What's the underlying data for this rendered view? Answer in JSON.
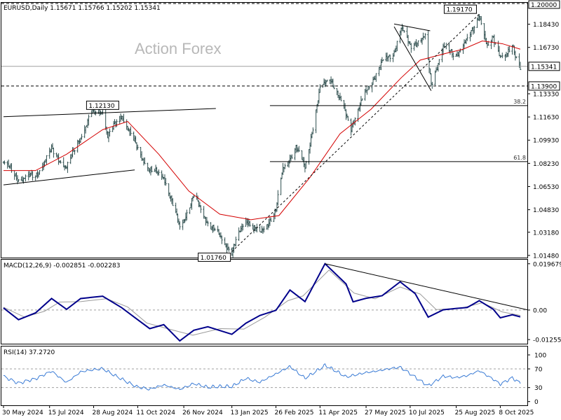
{
  "window": {
    "title": "EURUSD,Daily  1.15671 1.15766 1.15202 1.15341"
  },
  "watermark": "Action Forex",
  "colors": {
    "candle": "#2f4f4f",
    "ma": "#d40000",
    "macd": "#00008b",
    "signal": "#9a9a9a",
    "rsi": "#3a7bd5",
    "trend": "#000000",
    "priceLine": "#a0a0a0"
  },
  "chart_data": [
    {
      "type": "candlestick",
      "title": "EURUSD,Daily",
      "ohlc": {
        "open": 1.15671,
        "high": 1.15766,
        "low": 1.15202,
        "close": 1.15341
      },
      "x_tick_labels": [
        "30 May 2024",
        "15 Jul 2024",
        "28 Aug 2024",
        "11 Oct 2024",
        "26 Nov 2024",
        "13 Jan 2025",
        "26 Feb 2025",
        "11 Apr 2025",
        "27 May 2025",
        "10 Jul 2025",
        "25 Aug 2025",
        "8 Oct 2025"
      ],
      "y_tick_labels": [
        "1.20000",
        "1.18430",
        "1.16730",
        "1.15341",
        "1.13900",
        "1.13330",
        "1.11630",
        "1.09930",
        "1.08230",
        "1.06530",
        "1.04830",
        "1.03180",
        "1.01480"
      ],
      "ylim": [
        1.0132,
        1.2
      ],
      "current_price": "1.15341",
      "annotations": [
        {
          "label": "1.12130",
          "x": "2024-09-06",
          "price": 1.1213
        },
        {
          "label": "1.01760",
          "x": "2025-01-13",
          "price": 1.0176
        },
        {
          "label": "1.19170",
          "x": "2025-09-17",
          "price": 1.1917
        },
        {
          "label": "1.13900",
          "price": 1.139
        }
      ],
      "fib_levels": [
        {
          "label": "38.2",
          "price": 1.1246
        },
        {
          "label": "61.8",
          "price": 1.0836
        }
      ],
      "series": [
        {
          "name": "price",
          "points": [
            [
              "2024-05-30",
              1.083
            ],
            [
              "2024-06-14",
              1.071
            ],
            [
              "2024-07-01",
              1.073
            ],
            [
              "2024-07-17",
              1.092
            ],
            [
              "2024-08-01",
              1.079
            ],
            [
              "2024-08-15",
              1.102
            ],
            [
              "2024-08-26",
              1.119
            ],
            [
              "2024-09-06",
              1.1213
            ],
            [
              "2024-09-11",
              1.102
            ],
            [
              "2024-09-25",
              1.118
            ],
            [
              "2024-10-10",
              1.094
            ],
            [
              "2024-10-23",
              1.077
            ],
            [
              "2024-11-06",
              1.073
            ],
            [
              "2024-11-22",
              1.035
            ],
            [
              "2024-12-06",
              1.058
            ],
            [
              "2024-12-20",
              1.039
            ],
            [
              "2025-01-13",
              1.0176
            ],
            [
              "2025-01-27",
              1.042
            ],
            [
              "2025-02-10",
              1.03
            ],
            [
              "2025-02-26",
              1.048
            ],
            [
              "2025-03-05",
              1.078
            ],
            [
              "2025-03-18",
              1.094
            ],
            [
              "2025-03-27",
              1.079
            ],
            [
              "2025-04-11",
              1.136
            ],
            [
              "2025-04-21",
              1.146
            ],
            [
              "2025-05-12",
              1.109
            ],
            [
              "2025-05-27",
              1.135
            ],
            [
              "2025-06-12",
              1.156
            ],
            [
              "2025-06-24",
              1.164
            ],
            [
              "2025-07-01",
              1.181
            ],
            [
              "2025-07-10",
              1.169
            ],
            [
              "2025-07-25",
              1.174
            ],
            [
              "2025-07-31",
              1.141
            ],
            [
              "2025-08-12",
              1.167
            ],
            [
              "2025-08-25",
              1.162
            ],
            [
              "2025-09-05",
              1.172
            ],
            [
              "2025-09-17",
              1.1917
            ],
            [
              "2025-09-25",
              1.166
            ],
            [
              "2025-10-01",
              1.175
            ],
            [
              "2025-10-08",
              1.162
            ],
            [
              "2025-10-14",
              1.16
            ],
            [
              "2025-10-20",
              1.168
            ],
            [
              "2025-10-28",
              1.1534
            ]
          ]
        },
        {
          "name": "moving average",
          "points": [
            [
              "2024-05-30",
              1.077
            ],
            [
              "2024-07-01",
              1.077
            ],
            [
              "2024-08-01",
              1.089
            ],
            [
              "2024-09-06",
              1.107
            ],
            [
              "2024-10-01",
              1.113
            ],
            [
              "2024-11-01",
              1.089
            ],
            [
              "2024-12-01",
              1.062
            ],
            [
              "2025-01-01",
              1.045
            ],
            [
              "2025-02-01",
              1.041
            ],
            [
              "2025-03-01",
              1.044
            ],
            [
              "2025-04-01",
              1.072
            ],
            [
              "2025-05-01",
              1.104
            ],
            [
              "2025-06-01",
              1.122
            ],
            [
              "2025-07-01",
              1.145
            ],
            [
              "2025-07-20",
              1.158
            ],
            [
              "2025-08-15",
              1.163
            ],
            [
              "2025-09-01",
              1.166
            ],
            [
              "2025-09-20",
              1.172
            ],
            [
              "2025-10-10",
              1.17
            ],
            [
              "2025-10-28",
              1.166
            ]
          ]
        }
      ]
    },
    {
      "type": "line",
      "title": "MACD(12,26,9) -0.002851 -0.002283",
      "y_tick_labels": [
        "0.019679",
        "0.00",
        "-0.012552"
      ],
      "ylim": [
        -0.0143,
        0.0214
      ],
      "series": [
        {
          "name": "macd",
          "points": [
            [
              "2024-05-30",
              0.0009
            ],
            [
              "2024-06-14",
              -0.0041
            ],
            [
              "2024-07-01",
              -0.0012
            ],
            [
              "2024-07-17",
              0.0049
            ],
            [
              "2024-08-01",
              0.0003
            ],
            [
              "2024-08-15",
              0.0049
            ],
            [
              "2024-09-06",
              0.0059
            ],
            [
              "2024-09-25",
              0.001
            ],
            [
              "2024-10-10",
              -0.0038
            ],
            [
              "2024-10-23",
              -0.0079
            ],
            [
              "2024-11-06",
              -0.0062
            ],
            [
              "2024-11-22",
              -0.0131
            ],
            [
              "2024-12-06",
              -0.0086
            ],
            [
              "2024-12-20",
              -0.0071
            ],
            [
              "2025-01-13",
              -0.0103
            ],
            [
              "2025-01-27",
              -0.0056
            ],
            [
              "2025-02-10",
              -0.0023
            ],
            [
              "2025-02-26",
              -0.0001
            ],
            [
              "2025-03-12",
              0.0085
            ],
            [
              "2025-03-27",
              0.0036
            ],
            [
              "2025-04-16",
              0.0197
            ],
            [
              "2025-05-07",
              0.0111
            ],
            [
              "2025-05-14",
              0.0035
            ],
            [
              "2025-05-27",
              0.005
            ],
            [
              "2025-06-12",
              0.0061
            ],
            [
              "2025-06-30",
              0.012
            ],
            [
              "2025-07-15",
              0.007
            ],
            [
              "2025-07-28",
              -0.003
            ],
            [
              "2025-08-12",
              0.0001
            ],
            [
              "2025-08-25",
              0.0007
            ],
            [
              "2025-09-05",
              0.0011
            ],
            [
              "2025-09-17",
              0.004
            ],
            [
              "2025-10-01",
              0.0003
            ],
            [
              "2025-10-08",
              -0.0033
            ],
            [
              "2025-10-20",
              -0.002
            ],
            [
              "2025-10-28",
              -0.0029
            ]
          ]
        },
        {
          "name": "signal",
          "points": [
            [
              "2024-05-30",
              0.0012
            ],
            [
              "2024-06-20",
              -0.003
            ],
            [
              "2024-07-10",
              -0.0005
            ],
            [
              "2024-07-25",
              0.0034
            ],
            [
              "2024-08-15",
              0.0036
            ],
            [
              "2024-09-10",
              0.0048
            ],
            [
              "2024-10-01",
              0.0013
            ],
            [
              "2024-10-20",
              -0.0055
            ],
            [
              "2024-11-15",
              -0.0085
            ],
            [
              "2024-12-05",
              -0.0107
            ],
            [
              "2025-01-01",
              -0.0079
            ],
            [
              "2025-01-25",
              -0.0081
            ],
            [
              "2025-02-15",
              -0.003
            ],
            [
              "2025-03-10",
              0.004
            ],
            [
              "2025-03-25",
              0.006
            ],
            [
              "2025-04-20",
              0.017
            ],
            [
              "2025-05-15",
              0.0072
            ],
            [
              "2025-06-05",
              0.0048
            ],
            [
              "2025-06-30",
              0.0098
            ],
            [
              "2025-07-20",
              0.0068
            ],
            [
              "2025-08-05",
              0.0002
            ],
            [
              "2025-08-30",
              0.0008
            ],
            [
              "2025-09-20",
              0.0031
            ],
            [
              "2025-10-10",
              -0.0008
            ],
            [
              "2025-10-28",
              -0.0023
            ]
          ]
        }
      ]
    },
    {
      "type": "line",
      "title": "RSI(14) 37.2720",
      "y_tick_labels": [
        "100",
        "70",
        "30",
        "0"
      ],
      "ylim": [
        -8,
        118
      ],
      "series": [
        {
          "name": "rsi",
          "points": [
            [
              "2024-05-30",
              55
            ],
            [
              "2024-06-14",
              38
            ],
            [
              "2024-07-01",
              47
            ],
            [
              "2024-07-17",
              66
            ],
            [
              "2024-08-01",
              42
            ],
            [
              "2024-08-15",
              63
            ],
            [
              "2024-09-06",
              70
            ],
            [
              "2024-09-25",
              50
            ],
            [
              "2024-10-10",
              32
            ],
            [
              "2024-10-23",
              25
            ],
            [
              "2024-11-06",
              35
            ],
            [
              "2024-11-22",
              28
            ],
            [
              "2024-12-06",
              40
            ],
            [
              "2024-12-20",
              30
            ],
            [
              "2025-01-13",
              33
            ],
            [
              "2025-01-27",
              52
            ],
            [
              "2025-02-10",
              42
            ],
            [
              "2025-02-26",
              58
            ],
            [
              "2025-03-12",
              75
            ],
            [
              "2025-03-27",
              52
            ],
            [
              "2025-04-16",
              78
            ],
            [
              "2025-05-07",
              52
            ],
            [
              "2025-05-27",
              64
            ],
            [
              "2025-06-12",
              68
            ],
            [
              "2025-06-30",
              72
            ],
            [
              "2025-07-15",
              52
            ],
            [
              "2025-07-28",
              35
            ],
            [
              "2025-08-12",
              55
            ],
            [
              "2025-08-25",
              50
            ],
            [
              "2025-09-05",
              54
            ],
            [
              "2025-09-17",
              66
            ],
            [
              "2025-10-01",
              49
            ],
            [
              "2025-10-08",
              38
            ],
            [
              "2025-10-20",
              50
            ],
            [
              "2025-10-28",
              37
            ]
          ]
        }
      ]
    }
  ]
}
